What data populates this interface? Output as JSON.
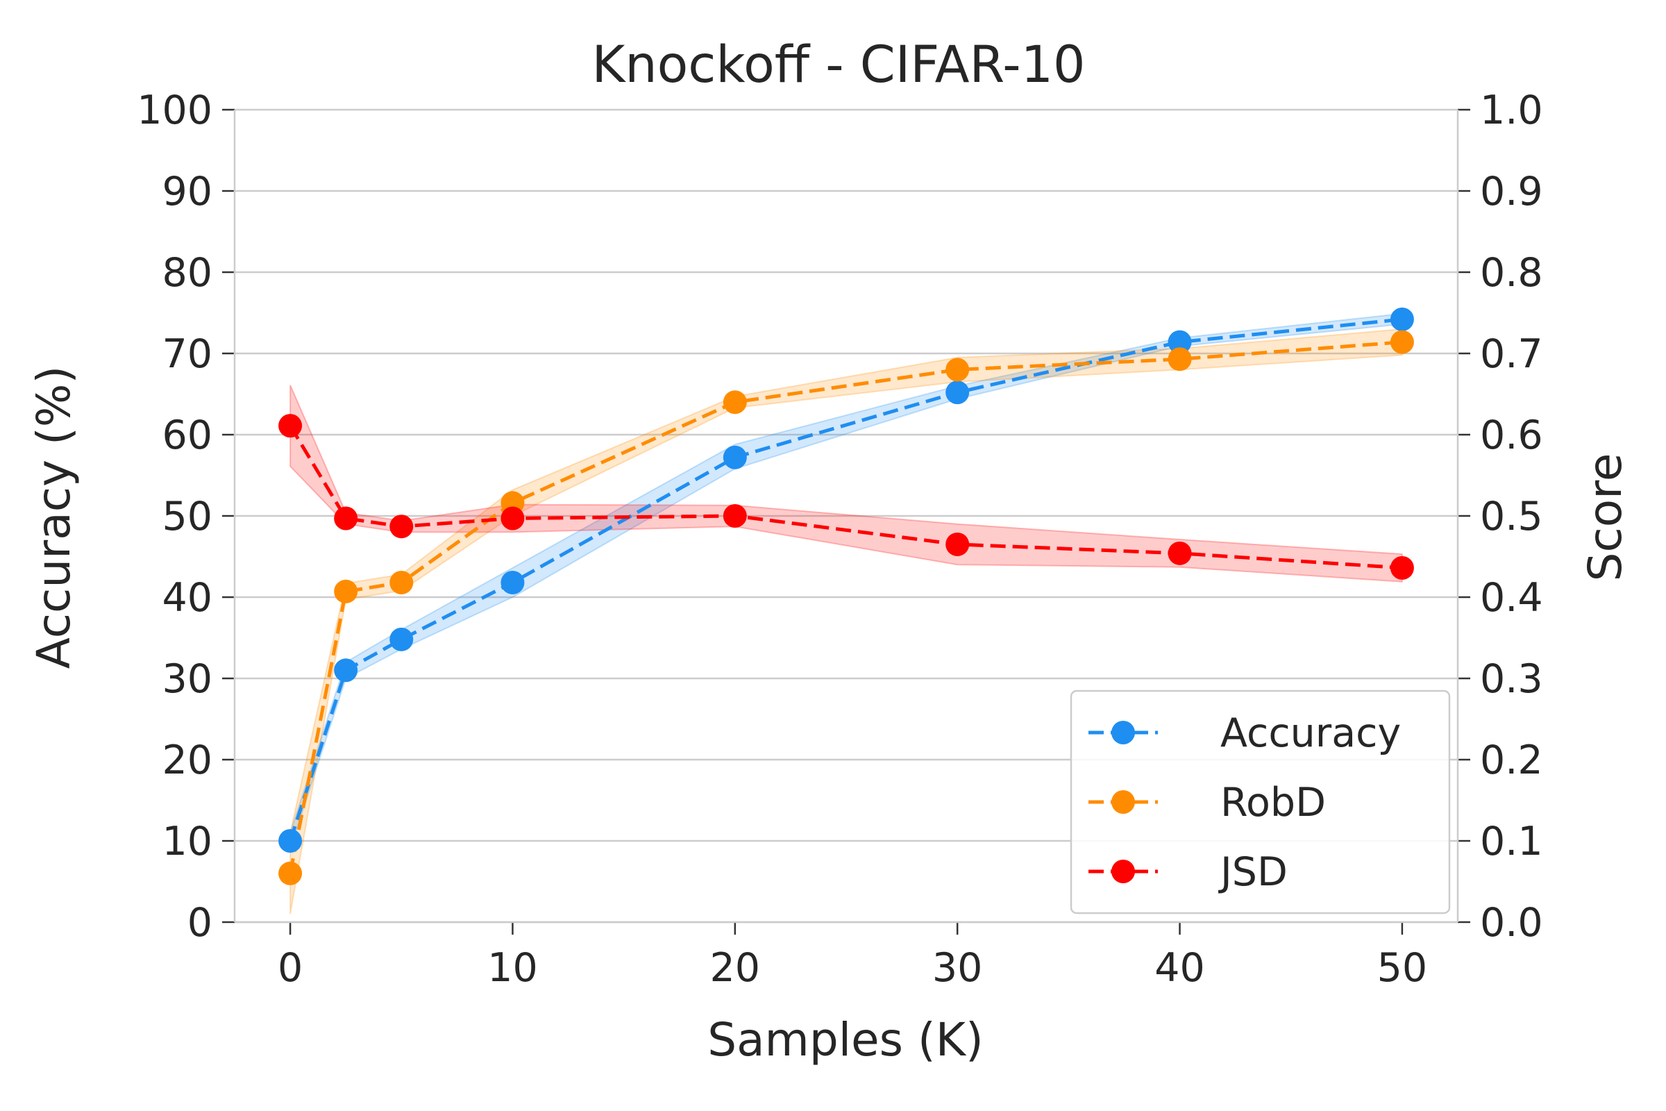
{
  "chart_data": {
    "type": "line",
    "title": "Knockoff - CIFAR-10",
    "xlabel": "Samples (K)",
    "ylabel": "Accuracy (%)",
    "y2label": "Score",
    "xlim": [
      -2.5,
      52.5
    ],
    "ylim": [
      0,
      100
    ],
    "y2lim": [
      0.0,
      1.0
    ],
    "x_ticks": [
      0,
      10,
      20,
      30,
      40,
      50
    ],
    "x_tick_labels": [
      "0",
      "10",
      "20",
      "30",
      "40",
      "50"
    ],
    "y_ticks": [
      0,
      10,
      20,
      30,
      40,
      50,
      60,
      70,
      80,
      90,
      100
    ],
    "y_tick_labels": [
      "0",
      "10",
      "20",
      "30",
      "40",
      "50",
      "60",
      "70",
      "80",
      "90",
      "100"
    ],
    "y2_ticks": [
      0.0,
      0.1,
      0.2,
      0.3,
      0.4,
      0.5,
      0.6,
      0.7,
      0.8,
      0.9,
      1.0
    ],
    "y2_tick_labels": [
      "0.0",
      "0.1",
      "0.2",
      "0.3",
      "0.4",
      "0.5",
      "0.6",
      "0.7",
      "0.8",
      "0.9",
      "1.0"
    ],
    "grid": true,
    "legend_position": "bottom-right",
    "x": [
      0,
      2.5,
      5,
      10,
      20,
      30,
      40,
      50
    ],
    "series": [
      {
        "name": "Accuracy",
        "axis": "left",
        "color": "#1f8ef1",
        "band_color": "#1f8ef1",
        "values": [
          10.0,
          31.0,
          34.8,
          41.8,
          57.2,
          65.2,
          71.4,
          74.2
        ],
        "lower": [
          9.0,
          30.0,
          33.6,
          40.0,
          55.8,
          64.4,
          70.9,
          73.6
        ],
        "upper": [
          11.0,
          32.0,
          36.0,
          43.6,
          58.8,
          66.0,
          71.9,
          74.9
        ]
      },
      {
        "name": "RobD",
        "axis": "right",
        "color": "#ff8c00",
        "band_color": "#ff8c00",
        "values": [
          0.06,
          0.407,
          0.418,
          0.516,
          0.64,
          0.68,
          0.693,
          0.714
        ],
        "lower": [
          0.01,
          0.397,
          0.408,
          0.5,
          0.633,
          0.665,
          0.68,
          0.698
        ],
        "upper": [
          0.11,
          0.417,
          0.428,
          0.532,
          0.647,
          0.695,
          0.706,
          0.73
        ]
      },
      {
        "name": "JSD",
        "axis": "right",
        "color": "#ff0000",
        "band_color": "#ff0000",
        "values": [
          0.611,
          0.497,
          0.487,
          0.497,
          0.5,
          0.465,
          0.454,
          0.436
        ],
        "lower": [
          0.561,
          0.49,
          0.48,
          0.48,
          0.487,
          0.44,
          0.437,
          0.419
        ],
        "upper": [
          0.661,
          0.504,
          0.494,
          0.514,
          0.513,
          0.49,
          0.471,
          0.453
        ]
      }
    ]
  }
}
